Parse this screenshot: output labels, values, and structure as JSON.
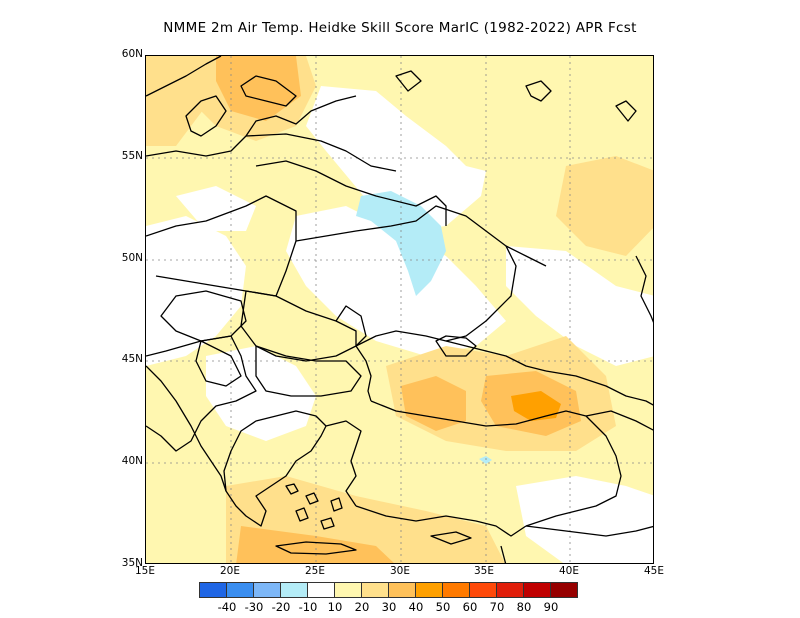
{
  "title": "NMME  2m Air Temp. Heidke Skill Score MarIC (1982-2022) APR Fcst",
  "lat_labels": [
    "60N",
    "55N",
    "50N",
    "45N",
    "40N",
    "35N"
  ],
  "lon_labels": [
    "15E",
    "20E",
    "25E",
    "30E",
    "35E",
    "40E",
    "45E"
  ],
  "colorbar": {
    "colors": [
      "#1f66e5",
      "#3a8ef0",
      "#7db7f7",
      "#b4ecf7",
      "#ffffff",
      "#fff7b0",
      "#ffe08c",
      "#ffc15a",
      "#ffa000",
      "#ff7a00",
      "#ff4a0a",
      "#e01e0a",
      "#c00000",
      "#960000"
    ],
    "labels": [
      "-40",
      "-30",
      "-20",
      "-10",
      "10",
      "20",
      "30",
      "40",
      "50",
      "60",
      "70",
      "80",
      "90"
    ]
  }
}
